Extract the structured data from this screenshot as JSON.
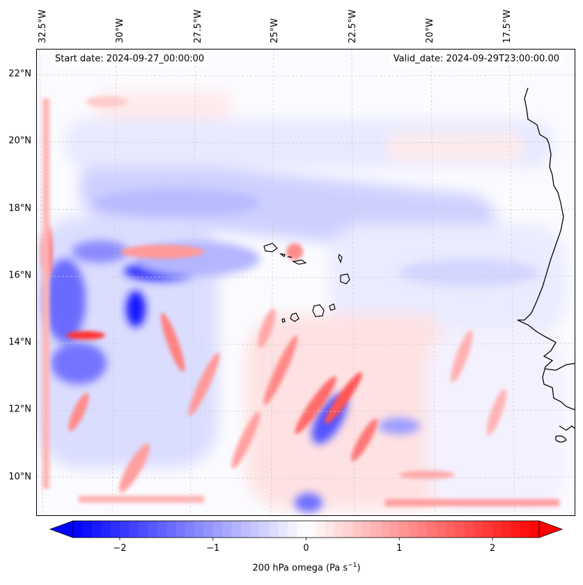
{
  "map": {
    "start_date_text": "Start date: 2024-09-27_00:00:00",
    "valid_date_text": "Valid_date: 2024-09-29T23:00:00.00",
    "lon_labels": [
      "32.5°W",
      "30°W",
      "27.5°W",
      "25°W",
      "22.5°W",
      "20°W",
      "17.5°W"
    ],
    "lat_labels": [
      "22°N",
      "20°N",
      "18°N",
      "16°N",
      "14°N",
      "12°N",
      "10°N"
    ],
    "lon_range": [
      -33.0,
      -15.6
    ],
    "lat_range": [
      8.9,
      22.7
    ],
    "gridlines": true,
    "gridline_style": "dashed-light-gray",
    "field_colormap": "bwr"
  },
  "colorbar": {
    "label_prefix": "200 hPa omega (Pa s",
    "label_superscript": "−1",
    "label_suffix": ")",
    "ticks": [
      "−2",
      "−1",
      "0",
      "1",
      "2"
    ],
    "tick_values": [
      -2,
      -1,
      0,
      1,
      2
    ],
    "vmin": -2.5,
    "vmax": 2.5,
    "extend": "both",
    "colors": {
      "negative": "#0000ff",
      "zero": "#ffffff",
      "positive": "#ff0000"
    }
  }
}
